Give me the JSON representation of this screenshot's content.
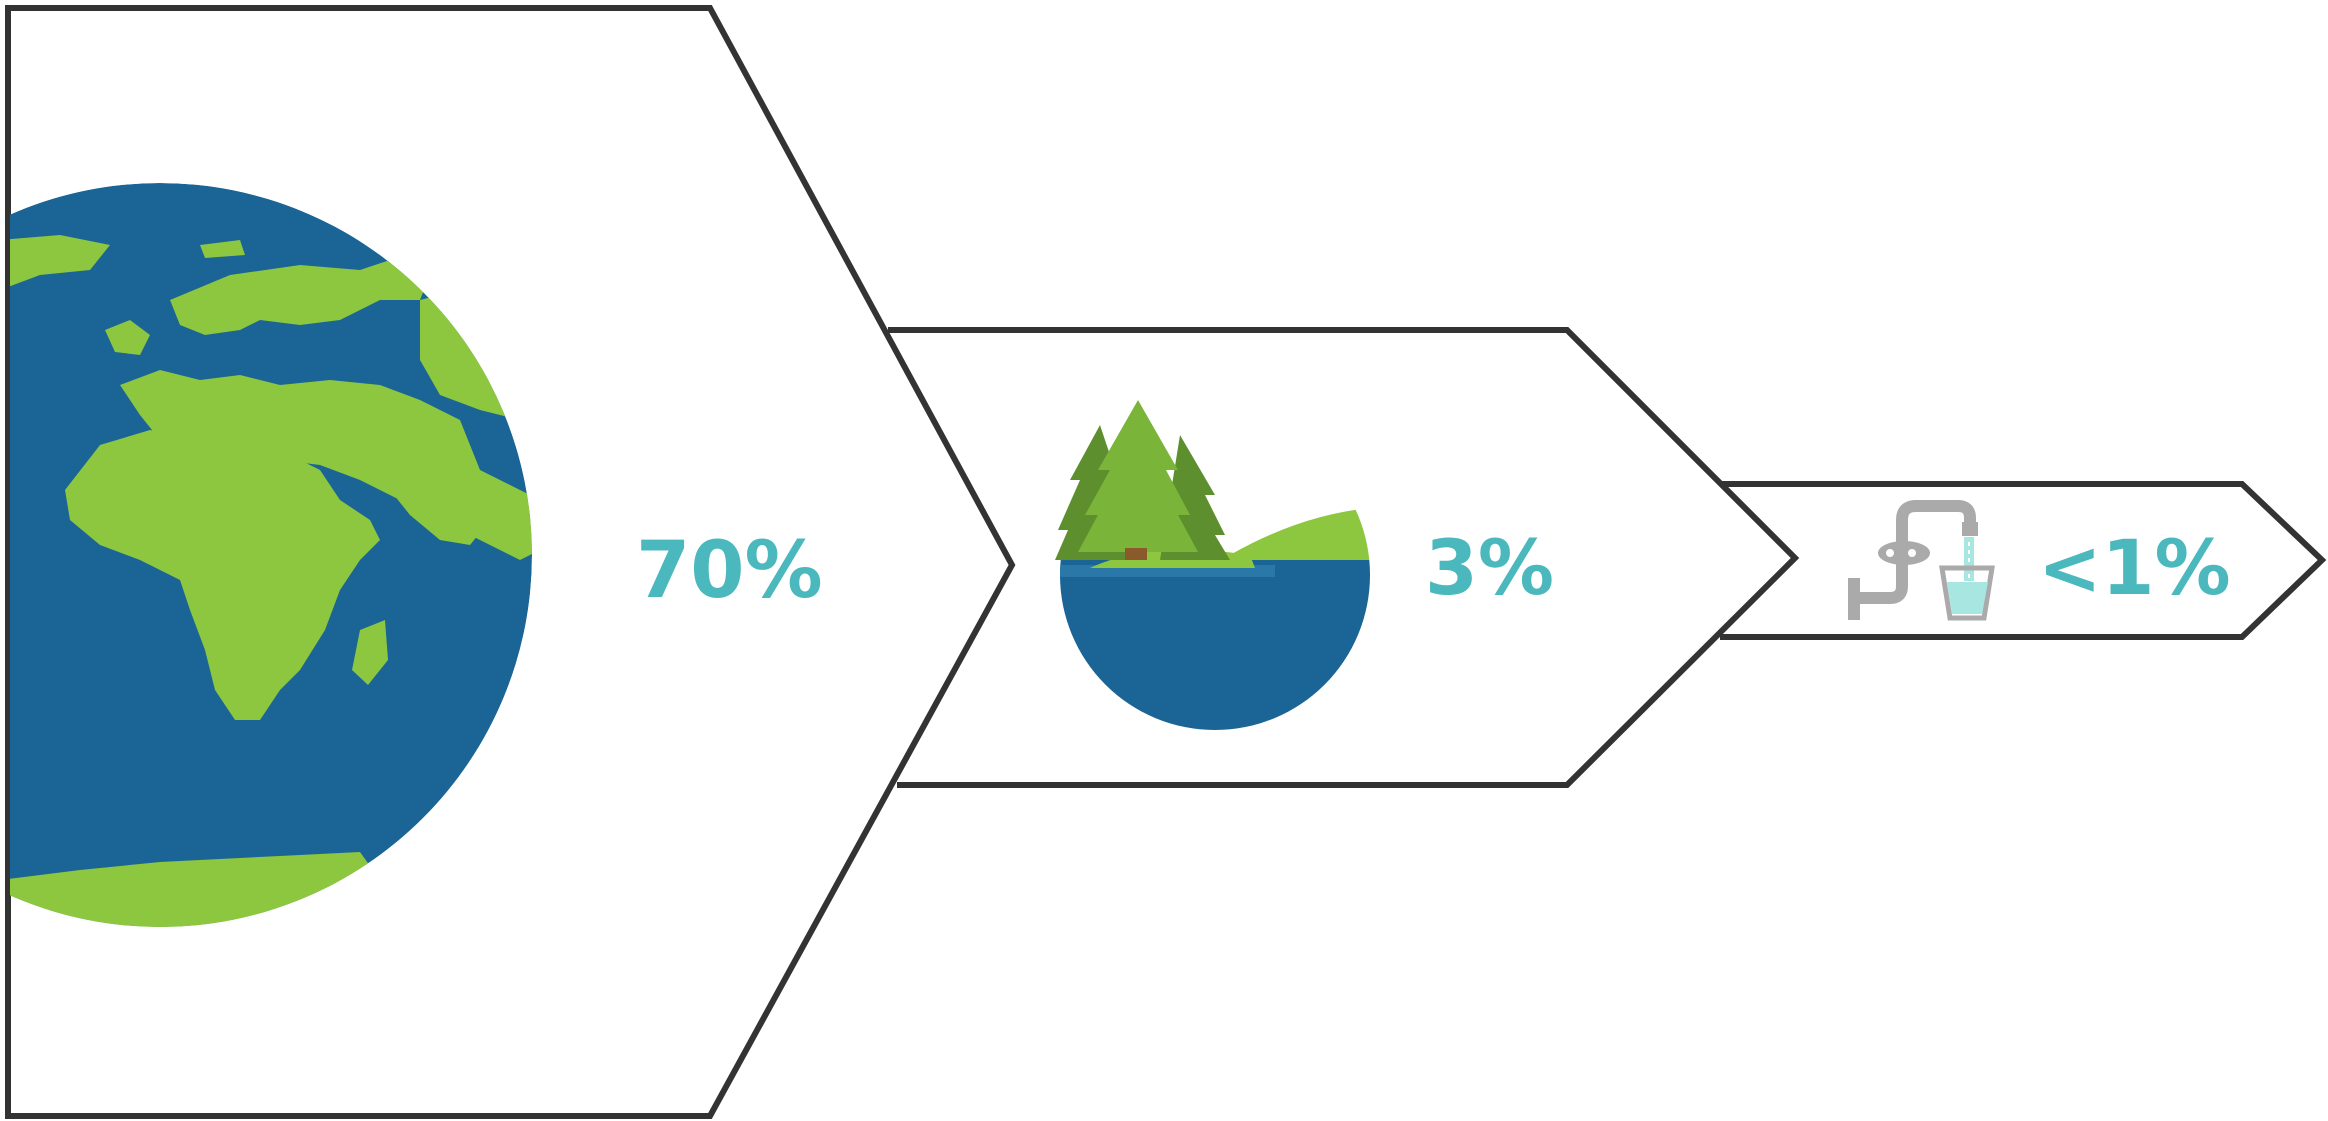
{
  "colors": {
    "outline": "#333333",
    "accent": "#4bb8bd",
    "ocean": "#1a6496",
    "land": "#8dc63f",
    "tree_light": "#7ab53a",
    "tree_dark": "#5e8f2e",
    "trunk": "#8b5a2b",
    "faucet": "#aaaaaa",
    "water": "#a8e6e2"
  },
  "stages": [
    {
      "label": "70%",
      "icon": "globe-icon"
    },
    {
      "label": "3%",
      "icon": "lake-island-icon"
    },
    {
      "label": "<1%",
      "icon": "faucet-glass-icon"
    }
  ]
}
